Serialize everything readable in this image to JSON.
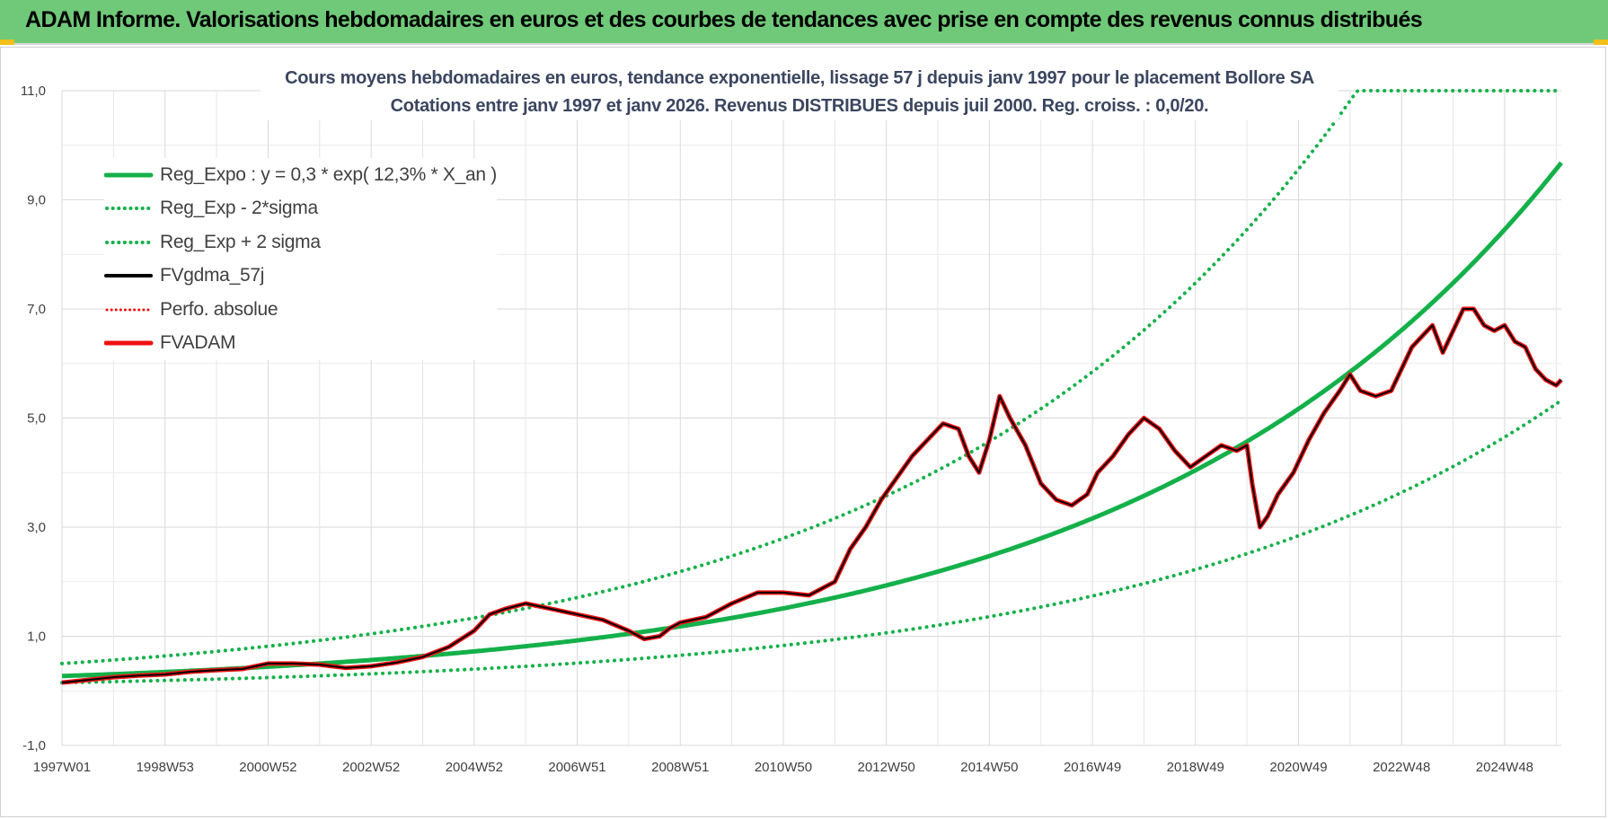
{
  "header": {
    "title": "ADAM Informe. Valorisations hebdomadaires en euros et des courbes de tendances avec prise en compte des revenus connus distribués"
  },
  "colors": {
    "header_bg": "#6fc978",
    "trend": "#14b04a",
    "fvgdma": "#000000",
    "fvadam": "#ee1111",
    "perfo": "#ee1111",
    "grid": "#d9d9d9"
  },
  "chart_data": {
    "type": "line",
    "title_lines": [
      "Cours moyens hebdomadaires en euros, tendance exponentielle, lissage 57 j depuis janv 1997 pour le placement Bollore SA",
      "Cotations entre janv 1997 et janv 2026. Revenus DISTRIBUES depuis juil 2000. Reg.  croiss. : 0,0/20."
    ],
    "xlabel": "",
    "ylabel": "",
    "x_range": [
      1997.0,
      2026.1
    ],
    "ylim": [
      -1.0,
      11.0
    ],
    "y_ticks": [
      "-1,0",
      "1,0",
      "3,0",
      "5,0",
      "7,0",
      "9,0",
      "11,0"
    ],
    "y_tick_values": [
      -1,
      1,
      3,
      5,
      7,
      9,
      11
    ],
    "x_ticks": [
      "1997W01",
      "1998W53",
      "2000W52",
      "2002W52",
      "2004W52",
      "2006W51",
      "2008W51",
      "2010W50",
      "2012W50",
      "2014W50",
      "2016W49",
      "2018W49",
      "2020W49",
      "2022W48",
      "2024W48"
    ],
    "x_tick_values": [
      1997.0,
      1999.0,
      2001.0,
      2003.0,
      2005.0,
      2007.0,
      2009.0,
      2011.0,
      2013.0,
      2015.0,
      2017.0,
      2019.0,
      2021.0,
      2023.0,
      2025.0
    ],
    "legend": [
      {
        "label": "Reg_Expo : y = 0,3 * exp( 12,3% *  X_an )",
        "style": "solid-green"
      },
      {
        "label": "Reg_Exp - 2*sigma",
        "style": "dotted-green"
      },
      {
        "label": "Reg_Exp + 2 sigma",
        "style": "dotted-green"
      },
      {
        "label": "FVgdma_57j",
        "style": "solid-black"
      },
      {
        "label": "Perfo. absolue",
        "style": "dotted-red"
      },
      {
        "label": "FVADAM",
        "style": "solid-red"
      }
    ],
    "trend": {
      "a": 0.27,
      "rate": 0.123,
      "x0": 1997.0
    },
    "band_upper_factor": 1.85,
    "band_lower_factor": 0.55,
    "band_cap": 11.0,
    "series": [
      {
        "name": "FVADAM",
        "x": [
          1997.0,
          1997.5,
          1998.0,
          1998.5,
          1999.0,
          1999.5,
          2000.0,
          2000.5,
          2001.0,
          2001.5,
          2002.0,
          2002.5,
          2003.0,
          2003.5,
          2004.0,
          2004.5,
          2005.0,
          2005.3,
          2005.6,
          2006.0,
          2006.5,
          2007.0,
          2007.5,
          2008.0,
          2008.3,
          2008.6,
          2008.8,
          2009.0,
          2009.5,
          2010.0,
          2010.5,
          2011.0,
          2011.5,
          2012.0,
          2012.3,
          2012.6,
          2012.9,
          2013.2,
          2013.5,
          2013.8,
          2014.1,
          2014.4,
          2014.6,
          2014.8,
          2015.0,
          2015.2,
          2015.4,
          2015.7,
          2016.0,
          2016.3,
          2016.6,
          2016.9,
          2017.1,
          2017.4,
          2017.7,
          2018.0,
          2018.3,
          2018.6,
          2018.9,
          2019.2,
          2019.5,
          2019.8,
          2020.0,
          2020.1,
          2020.25,
          2020.4,
          2020.6,
          2020.9,
          2021.2,
          2021.5,
          2021.8,
          2022.0,
          2022.2,
          2022.5,
          2022.8,
          2023.0,
          2023.2,
          2023.4,
          2023.6,
          2023.8,
          2024.0,
          2024.2,
          2024.4,
          2024.6,
          2024.8,
          2025.0,
          2025.2,
          2025.4,
          2025.6,
          2025.8,
          2026.0,
          2026.1
        ],
        "y": [
          0.15,
          0.2,
          0.25,
          0.28,
          0.3,
          0.35,
          0.38,
          0.4,
          0.5,
          0.5,
          0.48,
          0.42,
          0.45,
          0.52,
          0.62,
          0.8,
          1.1,
          1.4,
          1.5,
          1.6,
          1.5,
          1.4,
          1.3,
          1.1,
          0.95,
          1.0,
          1.15,
          1.25,
          1.35,
          1.6,
          1.8,
          1.8,
          1.75,
          2.0,
          2.6,
          3.0,
          3.5,
          3.9,
          4.3,
          4.6,
          4.9,
          4.8,
          4.3,
          4.0,
          4.6,
          5.4,
          5.0,
          4.5,
          3.8,
          3.5,
          3.4,
          3.6,
          4.0,
          4.3,
          4.7,
          5.0,
          4.8,
          4.4,
          4.1,
          4.3,
          4.5,
          4.4,
          4.5,
          3.8,
          3.0,
          3.2,
          3.6,
          4.0,
          4.6,
          5.1,
          5.5,
          5.8,
          5.5,
          5.4,
          5.5,
          5.9,
          6.3,
          6.5,
          6.7,
          6.2,
          6.6,
          7.0,
          7.0,
          6.7,
          6.6,
          6.7,
          6.4,
          6.3,
          5.9,
          5.7,
          5.6,
          5.7
        ]
      },
      {
        "name": "FVgdma_57j",
        "x": [
          1997.0,
          1997.5,
          1998.0,
          1998.5,
          1999.0,
          1999.5,
          2000.0,
          2000.5,
          2001.0,
          2001.5,
          2002.0,
          2002.5,
          2003.0,
          2003.5,
          2004.0,
          2004.5,
          2005.0,
          2005.3,
          2005.6,
          2006.0,
          2006.5,
          2007.0,
          2007.5,
          2008.0,
          2008.3,
          2008.6,
          2008.8,
          2009.0,
          2009.5,
          2010.0,
          2010.5,
          2011.0,
          2011.5,
          2012.0,
          2012.3,
          2012.6,
          2012.9,
          2013.2,
          2013.5,
          2013.8,
          2014.1,
          2014.4,
          2014.6,
          2014.8,
          2015.0,
          2015.2,
          2015.4,
          2015.7,
          2016.0,
          2016.3,
          2016.6,
          2016.9,
          2017.1,
          2017.4,
          2017.7,
          2018.0,
          2018.3,
          2018.6,
          2018.9,
          2019.2,
          2019.5,
          2019.8,
          2020.0,
          2020.1,
          2020.25,
          2020.4,
          2020.6,
          2020.9,
          2021.2,
          2021.5,
          2021.8,
          2022.0,
          2022.2,
          2022.5,
          2022.8,
          2023.0,
          2023.2,
          2023.4,
          2023.6,
          2023.8,
          2024.0,
          2024.2,
          2024.4,
          2024.6,
          2024.8,
          2025.0,
          2025.2,
          2025.4,
          2025.6,
          2025.8,
          2026.0,
          2026.1
        ],
        "y": [
          0.15,
          0.2,
          0.25,
          0.28,
          0.3,
          0.35,
          0.38,
          0.4,
          0.5,
          0.5,
          0.48,
          0.42,
          0.45,
          0.52,
          0.62,
          0.8,
          1.1,
          1.4,
          1.5,
          1.6,
          1.5,
          1.4,
          1.3,
          1.1,
          0.95,
          1.0,
          1.15,
          1.25,
          1.35,
          1.6,
          1.8,
          1.8,
          1.75,
          2.0,
          2.6,
          3.0,
          3.5,
          3.9,
          4.3,
          4.6,
          4.9,
          4.8,
          4.3,
          4.0,
          4.6,
          5.4,
          5.0,
          4.5,
          3.8,
          3.5,
          3.4,
          3.6,
          4.0,
          4.3,
          4.7,
          5.0,
          4.8,
          4.4,
          4.1,
          4.3,
          4.5,
          4.4,
          4.5,
          3.8,
          3.0,
          3.2,
          3.6,
          4.0,
          4.6,
          5.1,
          5.5,
          5.8,
          5.5,
          5.4,
          5.5,
          5.9,
          6.3,
          6.5,
          6.7,
          6.2,
          6.6,
          7.0,
          7.0,
          6.7,
          6.6,
          6.7,
          6.4,
          6.3,
          5.9,
          5.7,
          5.6,
          5.7
        ]
      }
    ]
  }
}
